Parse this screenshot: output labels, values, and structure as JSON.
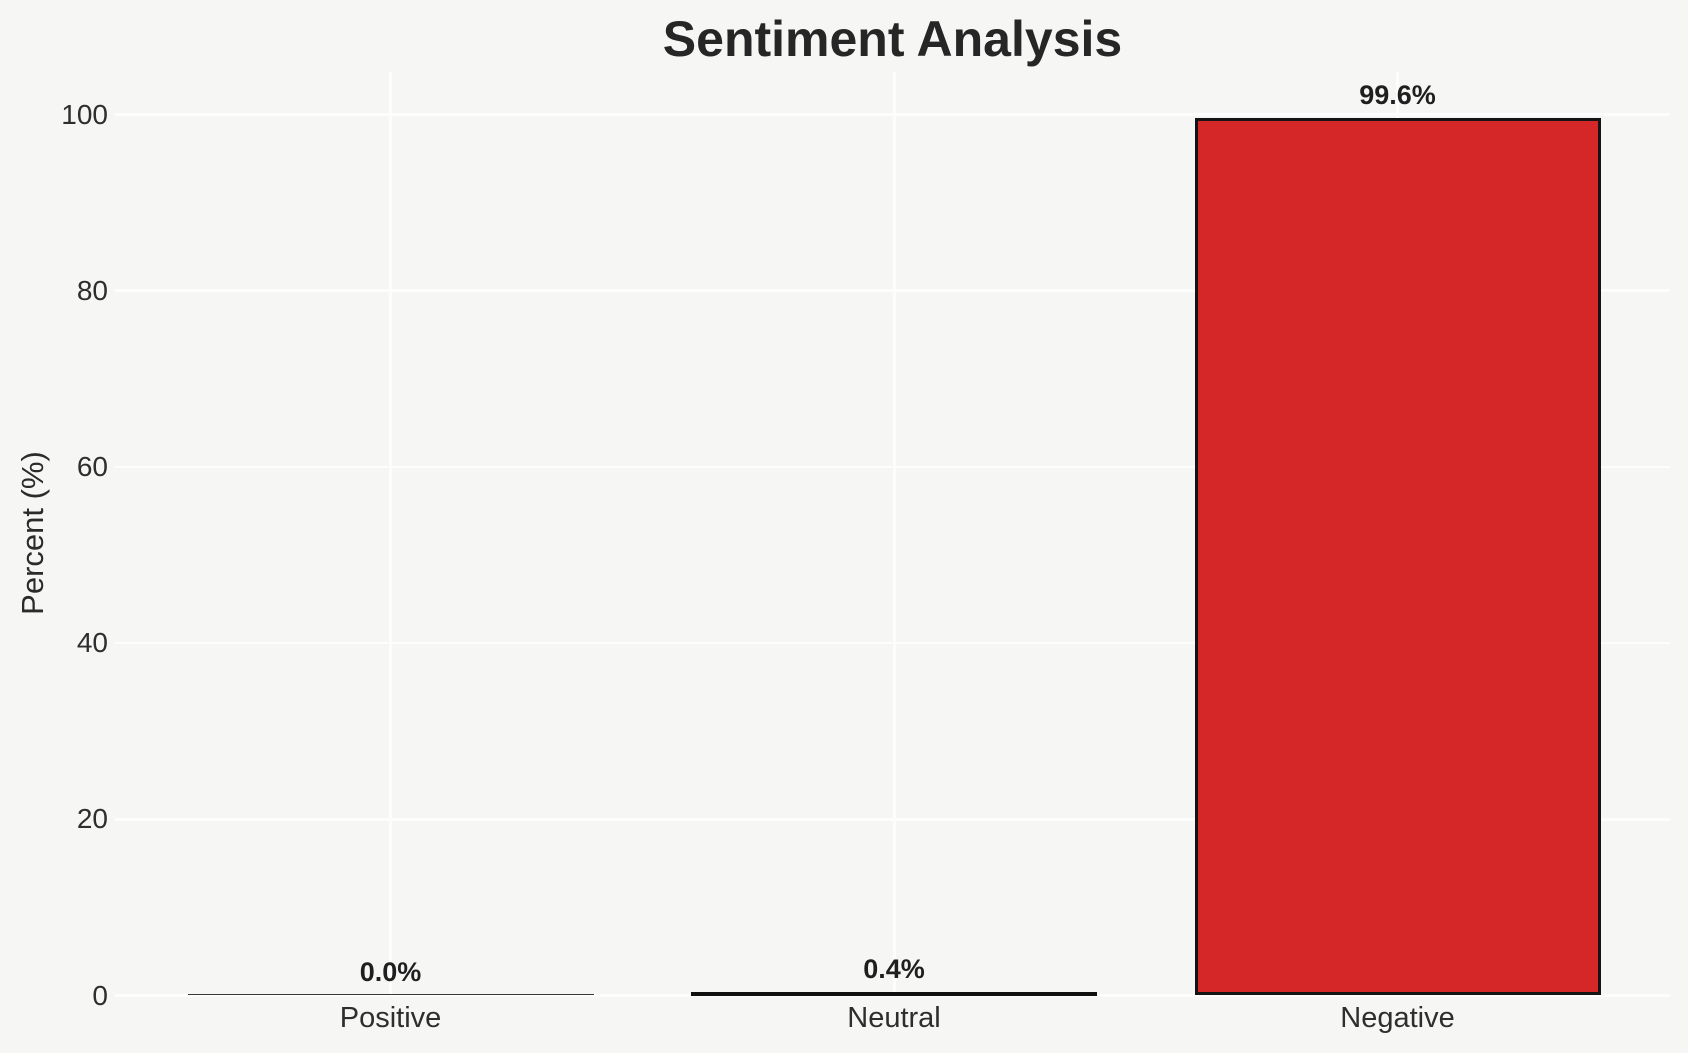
{
  "chart_data": {
    "type": "bar",
    "title": "Sentiment Analysis",
    "ylabel": "Percent (%)",
    "xlabel": "",
    "categories": [
      "Positive",
      "Neutral",
      "Negative"
    ],
    "values": [
      0.0,
      0.4,
      99.6
    ],
    "value_labels": [
      "0.0%",
      "0.4%",
      "99.6%"
    ],
    "yticks": [
      0,
      20,
      40,
      60,
      80,
      100
    ],
    "ylim": [
      0,
      104.5
    ],
    "grid": true,
    "legend": false,
    "colors": {
      "bar_fill": "#d62728",
      "bar_edge": "#141414",
      "background": "#f6f6f5",
      "gridline": "#fdfdfd",
      "title_text": "#262626",
      "tick_text": "#2e2e2e",
      "value_label_text": "#1f1f1f"
    }
  }
}
